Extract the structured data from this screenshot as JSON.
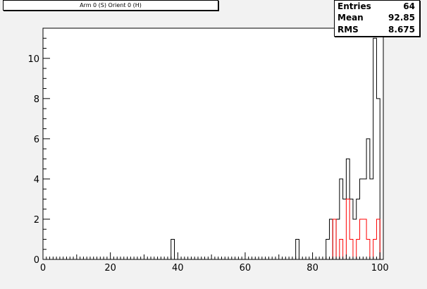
{
  "title": "Arm 0 (S) Orient 0 (H)",
  "stats": {
    "entries_label": "Entries",
    "entries_value": "64",
    "mean_label": "Mean",
    "mean_value": "92.85",
    "rms_label": "RMS",
    "rms_value": "8.675"
  },
  "colors": {
    "frame_bg": "#f2f2f2",
    "plot_bg": "#ffffff",
    "series_total": "#000000",
    "series_red": "#ff0000"
  },
  "chart_data": {
    "type": "bar",
    "title": "Arm 0 (S) Orient 0 (H)",
    "xlabel": "",
    "ylabel": "",
    "xlim": [
      0,
      101
    ],
    "ylim": [
      0,
      11.5
    ],
    "bin_width": 1,
    "x_ticks": [
      0,
      20,
      40,
      60,
      80,
      100
    ],
    "y_ticks": [
      0,
      2,
      4,
      6,
      8,
      10
    ],
    "grid": false,
    "series": [
      {
        "style": "step",
        "color": "#000000",
        "bins": [
          {
            "x": 38,
            "y": 1
          },
          {
            "x": 75,
            "y": 1
          },
          {
            "x": 84,
            "y": 1
          },
          {
            "x": 85,
            "y": 2
          },
          {
            "x": 87,
            "y": 2
          },
          {
            "x": 88,
            "y": 4
          },
          {
            "x": 89,
            "y": 3
          },
          {
            "x": 90,
            "y": 5
          },
          {
            "x": 91,
            "y": 3
          },
          {
            "x": 92,
            "y": 2
          },
          {
            "x": 93,
            "y": 3
          },
          {
            "x": 94,
            "y": 4
          },
          {
            "x": 95,
            "y": 4
          },
          {
            "x": 96,
            "y": 6
          },
          {
            "x": 97,
            "y": 4
          },
          {
            "x": 98,
            "y": 11
          },
          {
            "x": 99,
            "y": 8
          }
        ]
      },
      {
        "style": "step",
        "color": "#ff0000",
        "bins": [
          {
            "x": 86,
            "y": 2
          },
          {
            "x": 88,
            "y": 1
          },
          {
            "x": 90,
            "y": 3
          },
          {
            "x": 91,
            "y": 1
          },
          {
            "x": 93,
            "y": 1
          },
          {
            "x": 94,
            "y": 2
          },
          {
            "x": 95,
            "y": 2
          },
          {
            "x": 96,
            "y": 1
          },
          {
            "x": 97,
            "y": 0
          },
          {
            "x": 98,
            "y": 1
          },
          {
            "x": 99,
            "y": 2
          }
        ]
      }
    ]
  }
}
